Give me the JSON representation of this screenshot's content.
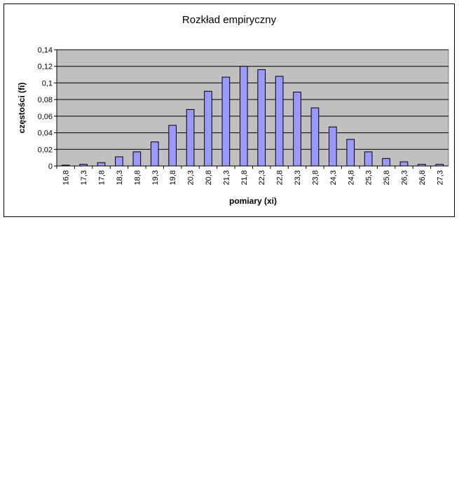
{
  "chart_data": {
    "type": "bar",
    "title": "Rozkład empiryczny",
    "xlabel": "pomiary (xi)",
    "ylabel": "częstości (fi)",
    "categories": [
      "16,8",
      "17,3",
      "17,8",
      "18,3",
      "18,8",
      "19,3",
      "19,8",
      "20,3",
      "20,8",
      "21,3",
      "21,8",
      "22,3",
      "22,8",
      "23,3",
      "23,8",
      "24,3",
      "24,8",
      "25,3",
      "25,8",
      "26,3",
      "26,8",
      "27,3"
    ],
    "values": [
      0.001,
      0.002,
      0.004,
      0.011,
      0.017,
      0.029,
      0.049,
      0.068,
      0.09,
      0.107,
      0.12,
      0.116,
      0.108,
      0.089,
      0.07,
      0.047,
      0.032,
      0.017,
      0.009,
      0.005,
      0.002,
      0.002
    ],
    "ylim": [
      0,
      0.14
    ],
    "yticks": [
      0,
      0.02,
      0.04,
      0.06,
      0.08,
      0.1,
      0.12,
      0.14
    ],
    "ytick_labels": [
      "0",
      "0,02",
      "0,04",
      "0,06",
      "0,08",
      "0,1",
      "0,12",
      "0,14"
    ],
    "grid": true,
    "legend": "none",
    "colors": {
      "bar_fill": "#9999ff",
      "plot_background": "#c0c0c0",
      "gridline": "#000000"
    }
  }
}
